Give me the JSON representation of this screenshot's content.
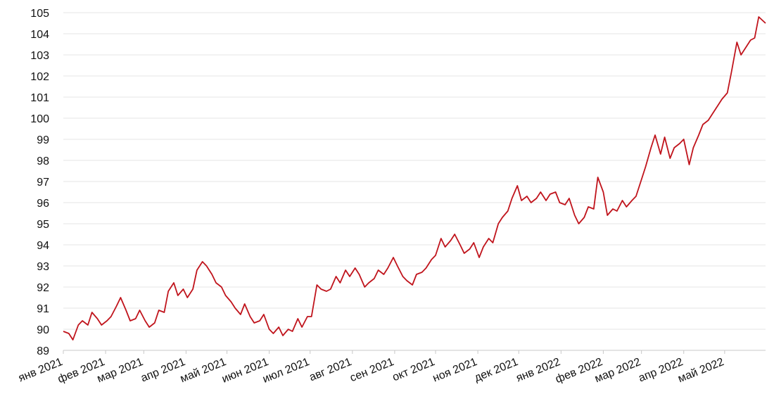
{
  "chart_data": {
    "type": "line",
    "title": "",
    "xlabel": "",
    "ylabel": "",
    "ylim": [
      89,
      105
    ],
    "yticks": [
      89,
      90,
      91,
      92,
      93,
      94,
      95,
      96,
      97,
      98,
      99,
      100,
      101,
      102,
      103,
      104,
      105
    ],
    "xticks": [
      "янв 2021",
      "фев 2021",
      "мар 2021",
      "апр 2021",
      "май 2021",
      "июн 2021",
      "июл 2021",
      "авг 2021",
      "сен 2021",
      "окт 2021",
      "ноя 2021",
      "дек 2021",
      "янв 2022",
      "фев 2022",
      "мар 2022",
      "апр 2022",
      "май 2022"
    ],
    "grid": true,
    "legend": "none",
    "color": "#c0141c",
    "series": [
      {
        "x": [
          "2021-01-01",
          "2021-01-05",
          "2021-01-08",
          "2021-01-12",
          "2021-01-15",
          "2021-01-19",
          "2021-01-22",
          "2021-01-26",
          "2021-01-29",
          "2021-02-02",
          "2021-02-05",
          "2021-02-09",
          "2021-02-12",
          "2021-02-16",
          "2021-02-19",
          "2021-02-23",
          "2021-02-26",
          "2021-03-02",
          "2021-03-05",
          "2021-03-09",
          "2021-03-12",
          "2021-03-16",
          "2021-03-19",
          "2021-03-23",
          "2021-03-26",
          "2021-03-30",
          "2021-04-02",
          "2021-04-06",
          "2021-04-09",
          "2021-04-13",
          "2021-04-16",
          "2021-04-20",
          "2021-04-23",
          "2021-04-27",
          "2021-04-30",
          "2021-05-04",
          "2021-05-07",
          "2021-05-11",
          "2021-05-14",
          "2021-05-18",
          "2021-05-21",
          "2021-05-25",
          "2021-05-28",
          "2021-06-01",
          "2021-06-04",
          "2021-06-08",
          "2021-06-11",
          "2021-06-15",
          "2021-06-18",
          "2021-06-22",
          "2021-06-25",
          "2021-06-29",
          "2021-07-02",
          "2021-07-06",
          "2021-07-09",
          "2021-07-13",
          "2021-07-16",
          "2021-07-20",
          "2021-07-23",
          "2021-07-27",
          "2021-07-30",
          "2021-08-03",
          "2021-08-06",
          "2021-08-10",
          "2021-08-13",
          "2021-08-17",
          "2021-08-20",
          "2021-08-24",
          "2021-08-27",
          "2021-08-31",
          "2021-09-03",
          "2021-09-07",
          "2021-09-10",
          "2021-09-14",
          "2021-09-17",
          "2021-09-21",
          "2021-09-24",
          "2021-09-28",
          "2021-10-01",
          "2021-10-05",
          "2021-10-08",
          "2021-10-12",
          "2021-10-15",
          "2021-10-19",
          "2021-10-22",
          "2021-10-26",
          "2021-10-29",
          "2021-11-02",
          "2021-11-05",
          "2021-11-09",
          "2021-11-12",
          "2021-11-16",
          "2021-11-19",
          "2021-11-23",
          "2021-11-26",
          "2021-11-30",
          "2021-12-03",
          "2021-12-07",
          "2021-12-10",
          "2021-12-14",
          "2021-12-17",
          "2021-12-21",
          "2021-12-24",
          "2021-12-28",
          "2021-12-31",
          "2022-01-04",
          "2022-01-07",
          "2022-01-11",
          "2022-01-14",
          "2022-01-18",
          "2022-01-21",
          "2022-01-25",
          "2022-01-28",
          "2022-02-01",
          "2022-02-04",
          "2022-02-08",
          "2022-02-11",
          "2022-02-15",
          "2022-02-18",
          "2022-02-22",
          "2022-02-25",
          "2022-03-01",
          "2022-03-04",
          "2022-03-08",
          "2022-03-11",
          "2022-03-15",
          "2022-03-18",
          "2022-03-22",
          "2022-03-25",
          "2022-03-29",
          "2022-04-01",
          "2022-04-05",
          "2022-04-08",
          "2022-04-12",
          "2022-04-15",
          "2022-04-19",
          "2022-04-22",
          "2022-04-26",
          "2022-04-29",
          "2022-05-03",
          "2022-05-06",
          "2022-05-10",
          "2022-05-13",
          "2022-05-17",
          "2022-05-20",
          "2022-05-23",
          "2022-05-26",
          "2022-05-31"
        ],
        "y": [
          89.9,
          89.8,
          89.5,
          90.2,
          90.4,
          90.2,
          90.8,
          90.5,
          90.2,
          90.4,
          90.6,
          91.1,
          91.5,
          90.9,
          90.4,
          90.5,
          90.9,
          90.4,
          90.1,
          90.3,
          90.9,
          90.8,
          91.8,
          92.2,
          91.6,
          91.9,
          91.5,
          91.9,
          92.8,
          93.2,
          93.0,
          92.6,
          92.2,
          92.0,
          91.6,
          91.3,
          91.0,
          90.7,
          91.2,
          90.6,
          90.3,
          90.4,
          90.7,
          90.0,
          89.8,
          90.1,
          89.7,
          90.0,
          89.9,
          90.5,
          90.1,
          90.6,
          90.6,
          92.1,
          91.9,
          91.8,
          91.9,
          92.5,
          92.2,
          92.8,
          92.5,
          92.9,
          92.6,
          92.0,
          92.2,
          92.4,
          92.8,
          92.6,
          92.9,
          93.4,
          93.0,
          92.5,
          92.3,
          92.1,
          92.6,
          92.7,
          92.9,
          93.3,
          93.5,
          94.3,
          93.9,
          94.2,
          94.5,
          94.0,
          93.6,
          93.8,
          94.1,
          93.4,
          93.9,
          94.3,
          94.1,
          95.0,
          95.3,
          95.6,
          96.2,
          96.8,
          96.1,
          96.3,
          96.0,
          96.2,
          96.5,
          96.1,
          96.4,
          96.5,
          96.0,
          95.9,
          96.2,
          95.4,
          95.0,
          95.3,
          95.8,
          95.7,
          97.2,
          96.5,
          95.4,
          95.7,
          95.6,
          96.1,
          95.8,
          96.1,
          96.3,
          97.1,
          97.7,
          98.6,
          99.2,
          98.3,
          99.1,
          98.1,
          98.6,
          98.8,
          99.0,
          97.8,
          98.6,
          99.2,
          99.7,
          99.9,
          100.2,
          100.6,
          100.9,
          101.2,
          102.2,
          103.6,
          103.0,
          103.4,
          103.7,
          103.8,
          104.8,
          104.5
        ]
      }
    ]
  }
}
